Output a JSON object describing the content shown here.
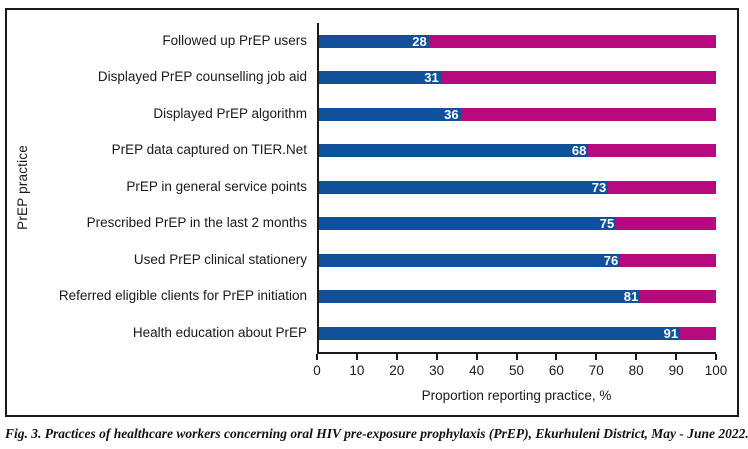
{
  "chart_data": {
    "type": "bar",
    "orientation": "horizontal",
    "stacked": true,
    "stack_total": 100,
    "title": "",
    "categories": [
      "Followed up PrEP users",
      "Displayed PrEP counselling job aid",
      "Displayed PrEP algorithm",
      "PrEP data captured on TIER.Net",
      "PrEP in general service points",
      "Prescribed PrEP in the last 2 months",
      "Used PrEP clinical stationery",
      "Referred eligible clients for PrEP initiation",
      "Health education about PrEP"
    ],
    "values": [
      28,
      31,
      36,
      68,
      73,
      75,
      76,
      81,
      91
    ],
    "remainders": [
      72,
      69,
      64,
      32,
      27,
      25,
      24,
      19,
      9
    ],
    "xlabel": "Proportion reporting practice, %",
    "ylabel": "PrEP practice",
    "xlim": [
      0,
      100
    ],
    "xticks": [
      0,
      10,
      20,
      30,
      40,
      50,
      60,
      70,
      80,
      90,
      100
    ],
    "grid": false,
    "legend": "none",
    "colors": {
      "reported_segment": "#11519b",
      "remainder_segment": "#b60a7e",
      "value_label": "#ffffff",
      "axis": "#1c1a18"
    }
  },
  "caption": "Fig. 3. Practices of healthcare workers concerning oral HIV pre-exposure prophylaxis (PrEP), Ekurhuleni District, May - June 2022."
}
